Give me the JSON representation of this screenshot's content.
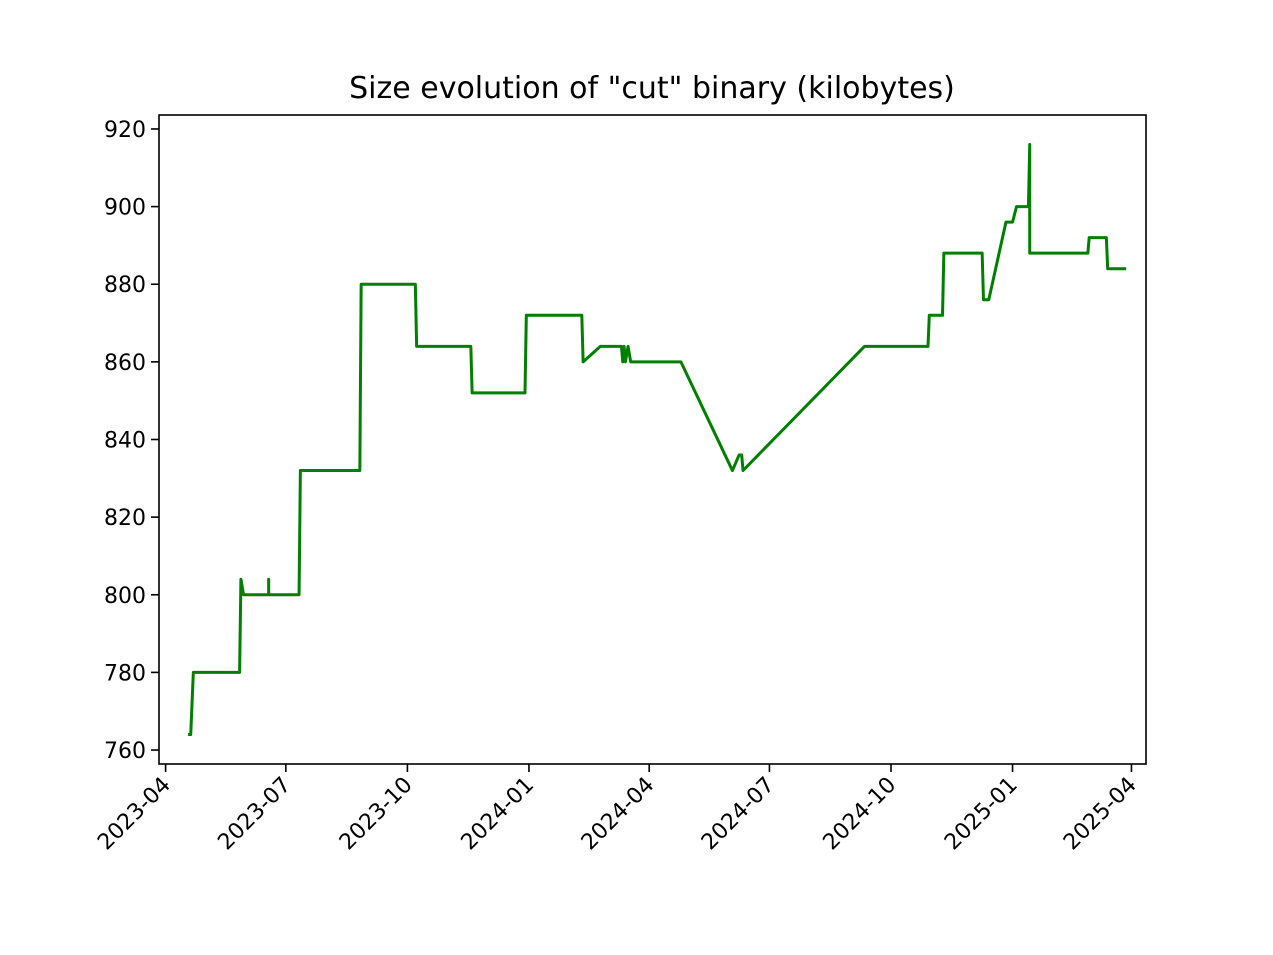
{
  "chart_data": {
    "type": "line",
    "title": "Size evolution of \"cut\" binary (kilobytes)",
    "xlabel": "",
    "ylabel": "",
    "xlim": [
      "2023-03-27",
      "2025-04-12"
    ],
    "ylim": [
      756.4,
      923.6
    ],
    "grid": false,
    "legend": "none",
    "xticks": [
      "2023-04",
      "2023-07",
      "2023-10",
      "2024-01",
      "2024-04",
      "2024-07",
      "2024-10",
      "2025-01",
      "2025-04"
    ],
    "yticks": [
      760,
      780,
      800,
      820,
      840,
      860,
      880,
      900,
      920
    ],
    "colors": {
      "line": "#008000",
      "axes": "#000000",
      "background": "#ffffff"
    },
    "series": [
      {
        "x": [
          "2023-04-18",
          "2023-04-20",
          "2023-04-22",
          "2023-05-27",
          "2023-05-28",
          "2023-05-30",
          "2023-06-18",
          "2023-06-18",
          "2023-06-18",
          "2023-07-11",
          "2023-07-12",
          "2023-08-26",
          "2023-08-27",
          "2023-10-07",
          "2023-10-08",
          "2023-11-18",
          "2023-11-19",
          "2023-12-29",
          "2023-12-30",
          "2024-02-10",
          "2024-02-11",
          "2024-02-24",
          "2024-03-11",
          "2024-03-12",
          "2024-03-13",
          "2024-03-14",
          "2024-03-16",
          "2024-03-18",
          "2024-04-25",
          "2024-06-03",
          "2024-06-08",
          "2024-06-10",
          "2024-06-11",
          "2024-09-11",
          "2024-10-29",
          "2024-10-30",
          "2024-11-09",
          "2024-11-10",
          "2024-12-09",
          "2024-12-10",
          "2024-12-14",
          "2024-12-27",
          "2025-01-01",
          "2025-01-04",
          "2025-01-13",
          "2025-01-14",
          "2025-01-14",
          "2025-02-27",
          "2025-02-28",
          "2025-03-13",
          "2025-03-14",
          "2025-03-28"
        ],
        "y": [
          764,
          764,
          780,
          780,
          804,
          800,
          800,
          804,
          800,
          800,
          832,
          832,
          880,
          880,
          864,
          864,
          852,
          852,
          872,
          872,
          860,
          864,
          864,
          860,
          864,
          860,
          864,
          860,
          860,
          832,
          836,
          836,
          832,
          864,
          864,
          872,
          872,
          888,
          888,
          876,
          876,
          896,
          896,
          900,
          900,
          916,
          888,
          888,
          892,
          892,
          884,
          884
        ]
      }
    ]
  }
}
